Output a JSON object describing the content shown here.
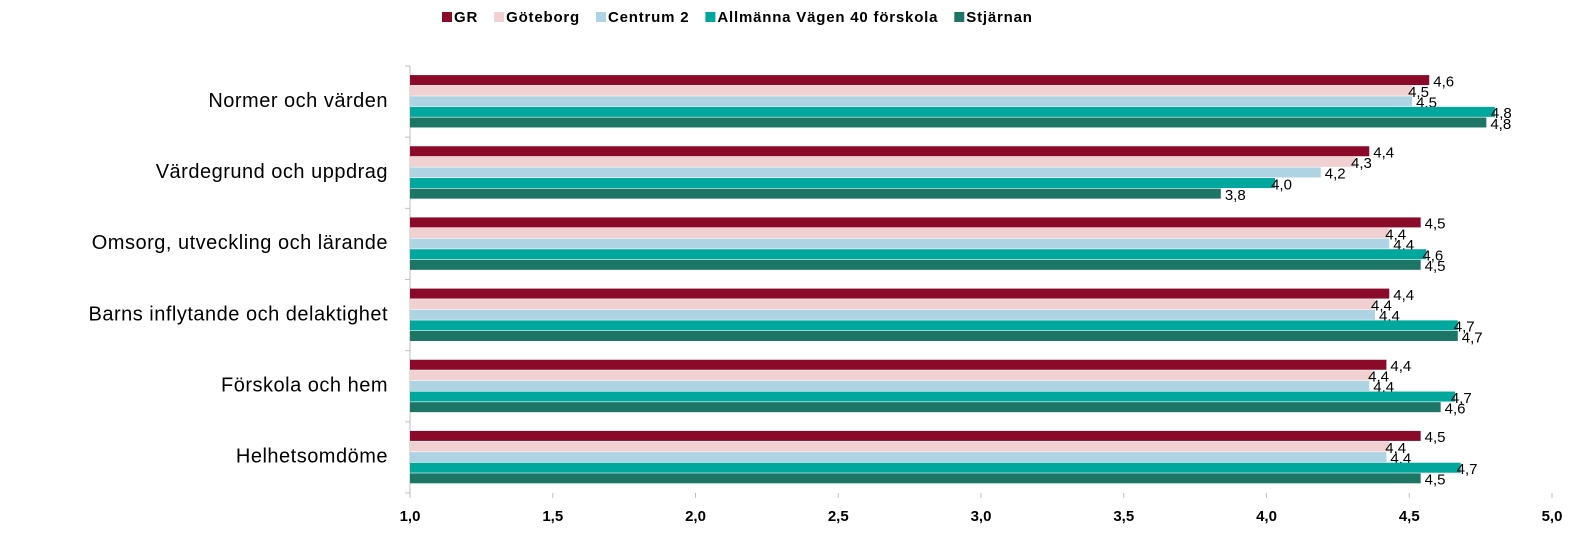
{
  "chart_data": {
    "type": "bar",
    "orientation": "horizontal",
    "categories": [
      "Normer och värden",
      "Värdegrund och uppdrag",
      "Omsorg, utveckling och lärande",
      "Barns inflytande och delaktighet",
      "Förskola och hem",
      "Helhetsomdöme"
    ],
    "series": [
      {
        "name": "GR",
        "color": "#8b0a2a",
        "values": [
          4.57,
          4.36,
          4.54,
          4.43,
          4.42,
          4.54
        ],
        "value_labels": [
          "4,6",
          "4,4",
          "4,5",
          "4,4",
          "4,4",
          "4,5"
        ]
      },
      {
        "name": "Göteborg",
        "color": "#f0d0d0",
        "values": [
          4.51,
          4.31,
          4.43,
          4.38,
          4.37,
          4.43
        ],
        "value_labels": [
          "4,5",
          "4,3",
          "4,4",
          "4,4",
          "4,4",
          "4,4"
        ]
      },
      {
        "name": "Centrum 2",
        "color": "#aed3e3",
        "values": [
          4.51,
          4.19,
          4.43,
          4.38,
          4.36,
          4.42
        ],
        "value_labels": [
          "4,5",
          "4,2",
          "4,4",
          "4,4",
          "4,4",
          "4,4"
        ]
      },
      {
        "name": "Allmänna Vägen 40 förskola",
        "color": "#00a79d",
        "values": [
          4.8,
          4.03,
          4.56,
          4.67,
          4.66,
          4.68
        ],
        "value_labels": [
          "4,8",
          "4,0",
          "4,6",
          "4,7",
          "4,7",
          "4,7"
        ]
      },
      {
        "name": "Stjärnan",
        "color": "#1d7566",
        "values": [
          4.77,
          3.84,
          4.54,
          4.67,
          4.61,
          4.54
        ],
        "value_labels": [
          "4,8",
          "3,8",
          "4,5",
          "4,7",
          "4,6",
          "4,5"
        ]
      }
    ],
    "xlim": [
      1,
      5
    ],
    "xticks": [
      {
        "value": 1,
        "label": "1,0"
      },
      {
        "value": 1.5,
        "label": "1,5"
      },
      {
        "value": 2,
        "label": "2,0"
      },
      {
        "value": 2.5,
        "label": "2,5"
      },
      {
        "value": 3,
        "label": "3,0"
      },
      {
        "value": 3.5,
        "label": "3,5"
      },
      {
        "value": 4,
        "label": "4,0"
      },
      {
        "value": 4.5,
        "label": "4,5"
      },
      {
        "value": 5,
        "label": "5,0"
      }
    ],
    "legend": "top"
  }
}
